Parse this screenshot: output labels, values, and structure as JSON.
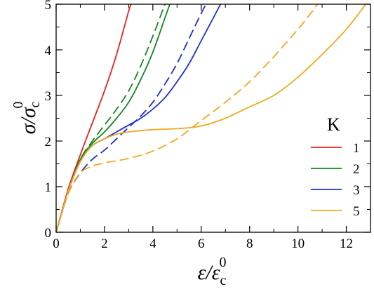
{
  "chart_data": {
    "type": "line",
    "xlabel": "ε/ε",
    "xlabel_sub": "c",
    "xlabel_sup": "0",
    "ylabel": "σ/σ",
    "ylabel_sub": "c",
    "ylabel_sup": "0",
    "xlim": [
      0,
      13
    ],
    "ylim": [
      0,
      5
    ],
    "x_ticks": [
      0,
      2,
      4,
      6,
      8,
      10,
      12
    ],
    "y_ticks": [
      0,
      1,
      2,
      3,
      4,
      5
    ],
    "legend_title": "K",
    "legend_position": "right",
    "series": [
      {
        "name": "1",
        "color": "#e8201e",
        "dash": false,
        "points": [
          [
            0,
            0
          ],
          [
            0.5,
            0.95
          ],
          [
            1.0,
            1.7
          ],
          [
            1.5,
            2.4
          ],
          [
            2.0,
            3.1
          ],
          [
            2.5,
            3.9
          ],
          [
            3.0,
            4.85
          ],
          [
            3.1,
            5.0
          ]
        ]
      },
      {
        "name": "2",
        "color": "#14861e",
        "dash": false,
        "points": [
          [
            0,
            0
          ],
          [
            0.5,
            0.9
          ],
          [
            1.0,
            1.6
          ],
          [
            1.5,
            1.95
          ],
          [
            2.0,
            2.2
          ],
          [
            2.5,
            2.5
          ],
          [
            3.0,
            2.85
          ],
          [
            3.5,
            3.35
          ],
          [
            4.0,
            3.95
          ],
          [
            4.5,
            4.7
          ],
          [
            4.7,
            5.0
          ]
        ]
      },
      {
        "name": "2",
        "color": "#14861e",
        "dash": true,
        "legend": false,
        "points": [
          [
            0,
            0
          ],
          [
            0.5,
            0.9
          ],
          [
            1.0,
            1.6
          ],
          [
            1.5,
            2.0
          ],
          [
            2.0,
            2.35
          ],
          [
            2.5,
            2.7
          ],
          [
            3.0,
            3.1
          ],
          [
            3.5,
            3.65
          ],
          [
            4.0,
            4.3
          ],
          [
            4.5,
            5.0
          ]
        ]
      },
      {
        "name": "3",
        "color": "#1a2fd6",
        "dash": false,
        "points": [
          [
            0,
            0
          ],
          [
            0.5,
            0.9
          ],
          [
            1.0,
            1.55
          ],
          [
            1.5,
            1.9
          ],
          [
            2.0,
            2.05
          ],
          [
            2.5,
            2.2
          ],
          [
            3.0,
            2.35
          ],
          [
            3.5,
            2.5
          ],
          [
            4.0,
            2.7
          ],
          [
            4.5,
            2.95
          ],
          [
            5.0,
            3.3
          ],
          [
            5.5,
            3.7
          ],
          [
            6.0,
            4.2
          ],
          [
            6.5,
            4.7
          ],
          [
            6.8,
            5.0
          ]
        ]
      },
      {
        "name": "3",
        "color": "#1a2fd6",
        "dash": true,
        "legend": false,
        "points": [
          [
            0,
            0
          ],
          [
            0.5,
            0.85
          ],
          [
            1.0,
            1.3
          ],
          [
            1.5,
            1.6
          ],
          [
            2.0,
            1.8
          ],
          [
            2.5,
            2.05
          ],
          [
            3.0,
            2.3
          ],
          [
            3.5,
            2.55
          ],
          [
            4.0,
            2.85
          ],
          [
            4.5,
            3.25
          ],
          [
            5.0,
            3.7
          ],
          [
            5.5,
            4.25
          ],
          [
            6.0,
            4.8
          ],
          [
            6.2,
            5.0
          ]
        ]
      },
      {
        "name": "5",
        "color": "#f2a91b",
        "dash": false,
        "points": [
          [
            0,
            0
          ],
          [
            0.5,
            0.9
          ],
          [
            1.0,
            1.55
          ],
          [
            1.5,
            1.9
          ],
          [
            2.0,
            2.05
          ],
          [
            2.5,
            2.15
          ],
          [
            3.0,
            2.2
          ],
          [
            4.0,
            2.25
          ],
          [
            5.0,
            2.27
          ],
          [
            6.0,
            2.33
          ],
          [
            7.0,
            2.5
          ],
          [
            8.0,
            2.75
          ],
          [
            9.0,
            3.0
          ],
          [
            10.0,
            3.4
          ],
          [
            11.0,
            3.9
          ],
          [
            12.0,
            4.45
          ],
          [
            12.8,
            5.0
          ]
        ]
      },
      {
        "name": "5",
        "color": "#f2a91b",
        "dash": true,
        "legend": false,
        "points": [
          [
            0,
            0
          ],
          [
            0.5,
            0.85
          ],
          [
            1.0,
            1.3
          ],
          [
            1.5,
            1.45
          ],
          [
            2.0,
            1.52
          ],
          [
            3.0,
            1.62
          ],
          [
            4.0,
            1.78
          ],
          [
            5.0,
            2.05
          ],
          [
            6.0,
            2.45
          ],
          [
            7.0,
            2.85
          ],
          [
            8.0,
            3.3
          ],
          [
            9.0,
            3.85
          ],
          [
            10.0,
            4.45
          ],
          [
            10.6,
            4.85
          ],
          [
            10.8,
            5.0
          ]
        ]
      }
    ]
  }
}
